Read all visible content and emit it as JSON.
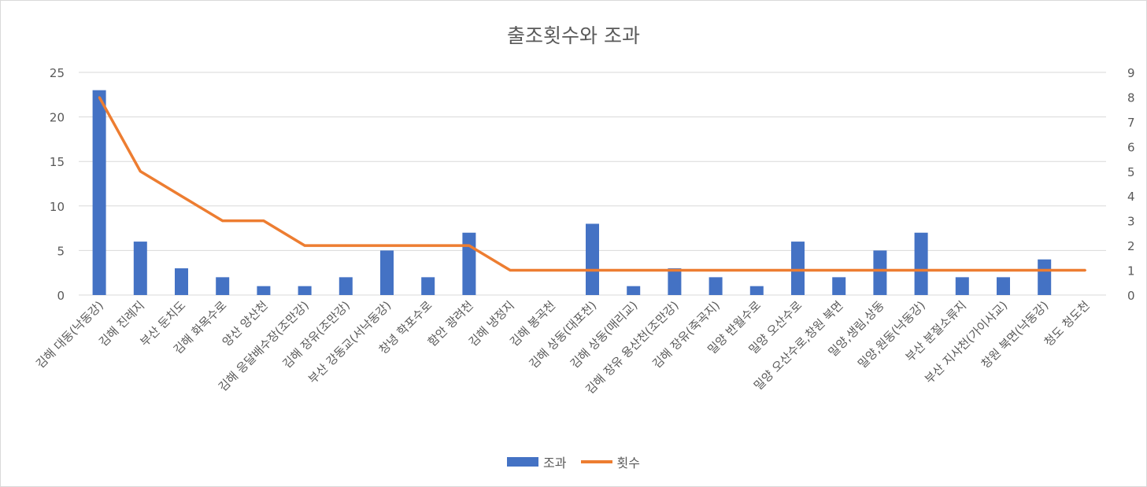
{
  "chart_data": {
    "type": "bar",
    "title": "출조횟수와 조과",
    "categories": [
      "김해 대동(낙동강)",
      "김해 진례지",
      "부산 둔치도",
      "김해 화목수로",
      "양산 양산천",
      "김해 응달배수장(조만강)",
      "김해 장유(조만강)",
      "부산 강동교(서낙동강)",
      "창녕 학포수로",
      "함안 광려천",
      "김해 냉정지",
      "김해 봉곡천",
      "김해 상동(대포천)",
      "김해 상동(매리교)",
      "김해 장유 용산천(조만강)",
      "김해 장유(죽곡지)",
      "밀양 반월수로",
      "밀양 오산수로",
      "밀양 오산수로,창원 북면",
      "밀양,생림,상동",
      "밀양,원동(낙동강)",
      "부산 분절소류지",
      "부산 지사천(가이사교)",
      "창원 북면(낙동강)",
      "청도 청도천"
    ],
    "series": [
      {
        "name": "조과",
        "type": "bar",
        "axis": "left",
        "color": "#4472C4",
        "values": [
          23,
          6,
          3,
          2,
          1,
          1,
          2,
          5,
          2,
          7,
          0,
          0,
          8,
          1,
          3,
          2,
          1,
          6,
          2,
          5,
          7,
          2,
          2,
          4,
          0
        ]
      },
      {
        "name": "횟수",
        "type": "line",
        "axis": "right",
        "color": "#ED7D31",
        "values": [
          8,
          5,
          4,
          3,
          3,
          2,
          2,
          2,
          2,
          2,
          1,
          1,
          1,
          1,
          1,
          1,
          1,
          1,
          1,
          1,
          1,
          1,
          1,
          1,
          1
        ]
      }
    ],
    "y_left": {
      "min": 0,
      "max": 25,
      "ticks": [
        0,
        5,
        10,
        15,
        20,
        25
      ]
    },
    "y_right": {
      "min": 0,
      "max": 9,
      "ticks": [
        0,
        1,
        2,
        3,
        4,
        5,
        6,
        7,
        8,
        9
      ]
    },
    "grid": true,
    "legend_position": "bottom"
  }
}
